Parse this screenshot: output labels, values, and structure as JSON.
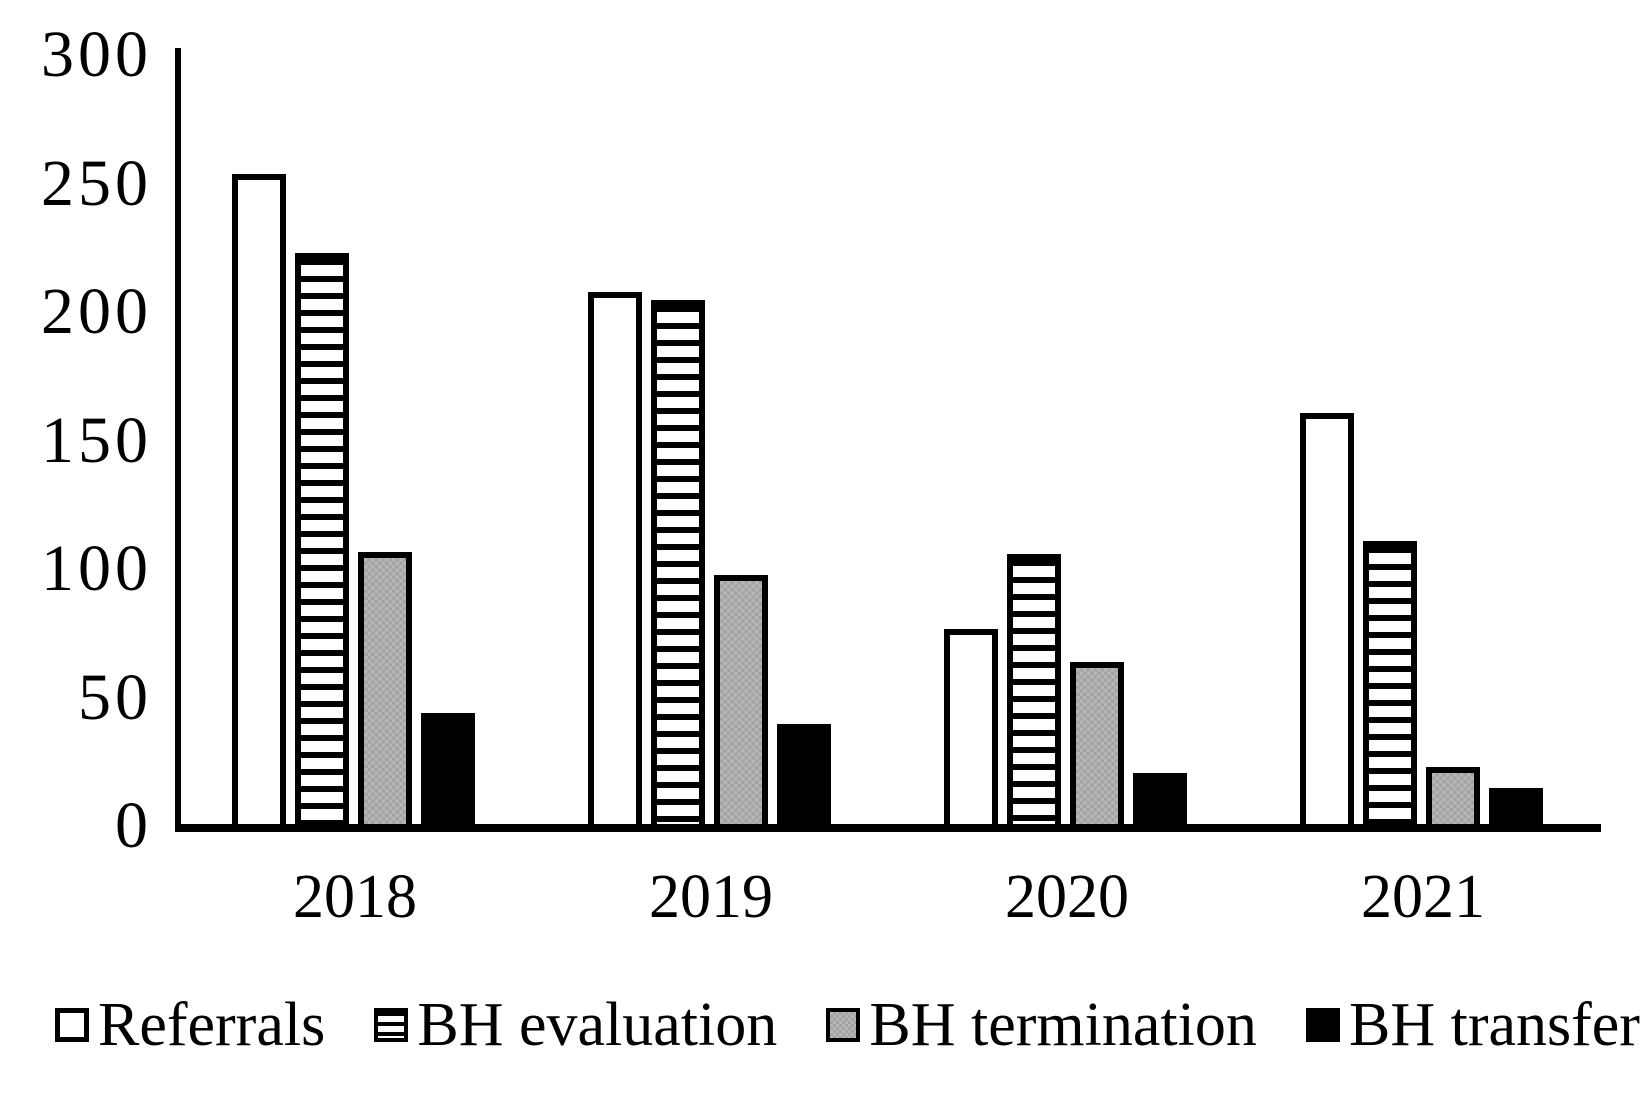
{
  "figure": {
    "background": "#ffffff",
    "text_color": "#000000"
  },
  "colors": {
    "bar_outline": "#000000",
    "white_fill": "#ffffff",
    "gray_fill_light": "#b6b6b6",
    "gray_fill_dark": "#a3a3a3",
    "black_fill": "#000000"
  },
  "chart_data": {
    "type": "bar",
    "title": "",
    "xlabel": "",
    "ylabel": "",
    "categories": [
      "2018",
      "2019",
      "2020",
      "2021"
    ],
    "series": [
      {
        "name": "Referrals",
        "pattern": "white-outline",
        "values": [
          253,
          207,
          76,
          160
        ]
      },
      {
        "name": "BH evaluation",
        "pattern": "horizontal-stripes",
        "values": [
          222,
          204,
          105,
          110
        ]
      },
      {
        "name": "BH termination",
        "pattern": "dotted-gray",
        "values": [
          106,
          97,
          63,
          22
        ]
      },
      {
        "name": "BH transfer",
        "pattern": "solid-black",
        "values": [
          43,
          39,
          20,
          14
        ]
      }
    ],
    "ylim": [
      0,
      300
    ],
    "yticks": [
      0,
      50,
      100,
      150,
      200,
      250,
      300
    ],
    "grid": false,
    "legend_position": "bottom"
  }
}
